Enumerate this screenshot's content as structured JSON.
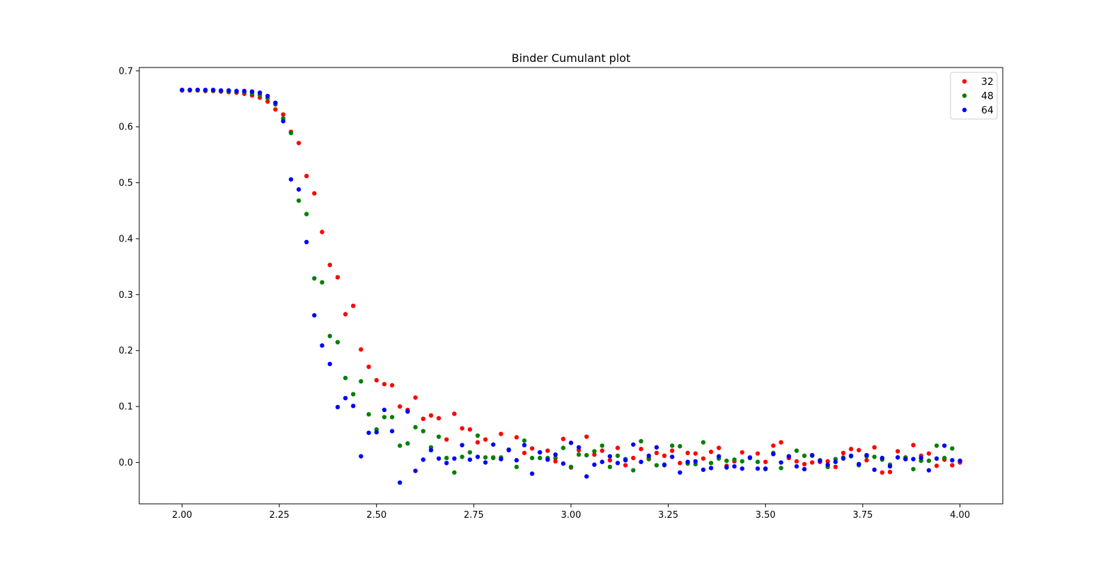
{
  "chart_data": {
    "type": "scatter",
    "title": "Binder Cumulant plot",
    "xlabel": "",
    "ylabel": "",
    "xlim": [
      1.89,
      4.11
    ],
    "ylim": [
      -0.074,
      0.706
    ],
    "xticks": [
      2.0,
      2.25,
      2.5,
      2.75,
      3.0,
      3.25,
      3.5,
      3.75,
      4.0
    ],
    "xtick_labels": [
      "2.00",
      "2.25",
      "2.50",
      "2.75",
      "3.00",
      "3.25",
      "3.50",
      "3.75",
      "4.00"
    ],
    "yticks": [
      0.0,
      0.1,
      0.2,
      0.3,
      0.4,
      0.5,
      0.6,
      0.7
    ],
    "ytick_labels": [
      "0.0",
      "0.1",
      "0.2",
      "0.3",
      "0.4",
      "0.5",
      "0.6",
      "0.7"
    ],
    "grid": false,
    "legend_position": "top-right",
    "x": [
      2.0,
      2.02,
      2.04,
      2.06,
      2.08,
      2.1,
      2.12,
      2.14,
      2.16,
      2.18,
      2.2,
      2.22,
      2.24,
      2.26,
      2.28,
      2.3,
      2.32,
      2.34,
      2.36,
      2.38,
      2.4,
      2.42,
      2.44,
      2.46,
      2.48,
      2.5,
      2.52,
      2.54,
      2.56,
      2.58,
      2.6,
      2.62,
      2.64,
      2.66,
      2.68,
      2.7,
      2.72,
      2.74,
      2.76,
      2.78,
      2.8,
      2.82,
      2.84,
      2.86,
      2.88,
      2.9,
      2.92,
      2.94,
      2.96,
      2.98,
      3.0,
      3.02,
      3.04,
      3.06,
      3.08,
      3.1,
      3.12,
      3.14,
      3.16,
      3.18,
      3.2,
      3.22,
      3.24,
      3.26,
      3.28,
      3.3,
      3.32,
      3.34,
      3.36,
      3.38,
      3.4,
      3.42,
      3.44,
      3.46,
      3.48,
      3.5,
      3.52,
      3.54,
      3.56,
      3.58,
      3.6,
      3.62,
      3.64,
      3.66,
      3.68,
      3.7,
      3.72,
      3.74,
      3.76,
      3.78,
      3.8,
      3.82,
      3.84,
      3.86,
      3.88,
      3.9,
      3.92,
      3.94,
      3.96,
      3.98,
      4.0
    ],
    "series": [
      {
        "name": "32",
        "color": "#ff0000",
        "values": [
          0.665,
          0.665,
          0.665,
          0.664,
          0.664,
          0.663,
          0.662,
          0.661,
          0.659,
          0.656,
          0.652,
          0.645,
          0.631,
          0.622,
          0.591,
          0.571,
          0.512,
          0.481,
          0.412,
          0.353,
          0.331,
          0.265,
          0.28,
          0.202,
          0.171,
          0.147,
          0.14,
          0.138,
          0.1,
          0.094,
          0.116,
          0.078,
          0.084,
          0.079,
          0.041,
          0.087,
          0.061,
          0.059,
          0.036,
          0.041,
          0.009,
          0.051,
          0.023,
          0.045,
          0.017,
          0.025,
          0.018,
          0.021,
          0.002,
          0.042,
          -0.009,
          0.022,
          0.046,
          0.014,
          0.021,
          0.004,
          0.026,
          -0.005,
          0.008,
          0.024,
          0.008,
          0.017,
          0.012,
          0.021,
          -0.001,
          0.017,
          0.016,
          0.007,
          0.019,
          0.026,
          -0.006,
          0.002,
          0.018,
          0.008,
          0.016,
          0.001,
          0.03,
          0.036,
          0.008,
          0.002,
          -0.003,
          0.0,
          0.001,
          0.002,
          -0.008,
          0.017,
          0.024,
          0.022,
          0.004,
          0.027,
          -0.018,
          -0.017,
          0.02,
          0.006,
          0.031,
          0.012,
          0.016,
          -0.006,
          0.005,
          -0.005,
          0.0
        ]
      },
      {
        "name": "48",
        "color": "#008000",
        "values": [
          0.666,
          0.666,
          0.666,
          0.665,
          0.665,
          0.664,
          0.663,
          0.663,
          0.662,
          0.66,
          0.657,
          0.651,
          0.64,
          0.615,
          0.589,
          0.468,
          0.444,
          0.329,
          0.322,
          0.226,
          0.215,
          0.151,
          0.122,
          0.145,
          0.086,
          0.059,
          0.081,
          0.081,
          0.03,
          0.034,
          0.063,
          0.056,
          0.027,
          0.046,
          0.008,
          -0.018,
          0.01,
          0.018,
          0.048,
          0.009,
          0.008,
          0.009,
          0.023,
          -0.008,
          0.039,
          0.008,
          0.008,
          0.008,
          0.008,
          0.026,
          -0.008,
          0.014,
          0.013,
          0.02,
          0.03,
          -0.008,
          0.012,
          0.006,
          -0.014,
          0.038,
          0.006,
          -0.005,
          -0.005,
          0.03,
          0.029,
          -0.002,
          -0.003,
          0.036,
          -0.001,
          0.007,
          0.003,
          0.005,
          0.002,
          0.008,
          0.001,
          -0.012,
          0.017,
          -0.01,
          0.011,
          0.021,
          0.012,
          0.012,
          0.004,
          -0.008,
          0.006,
          0.009,
          0.011,
          -0.005,
          0.011,
          0.01,
          0.005,
          -0.004,
          0.009,
          0.009,
          -0.012,
          0.003,
          0.003,
          0.03,
          0.008,
          0.025,
          0.003
        ]
      },
      {
        "name": "64",
        "color": "#0000ff",
        "values": [
          0.666,
          0.666,
          0.666,
          0.666,
          0.666,
          0.665,
          0.665,
          0.664,
          0.664,
          0.663,
          0.661,
          0.655,
          0.643,
          0.61,
          0.506,
          0.488,
          0.394,
          0.263,
          0.209,
          0.176,
          0.099,
          0.115,
          0.101,
          0.011,
          0.053,
          0.054,
          0.094,
          0.056,
          -0.036,
          0.091,
          -0.015,
          0.005,
          0.022,
          0.007,
          -0.001,
          0.007,
          0.031,
          0.005,
          0.01,
          0.0,
          0.032,
          0.006,
          0.022,
          0.004,
          0.031,
          -0.02,
          0.018,
          0.005,
          0.014,
          -0.002,
          0.035,
          0.027,
          -0.025,
          -0.004,
          0.001,
          0.011,
          -0.001,
          0.004,
          0.032,
          0.001,
          0.012,
          0.027,
          -0.004,
          0.01,
          -0.018,
          0.001,
          0.002,
          -0.013,
          -0.01,
          0.011,
          -0.009,
          -0.007,
          -0.011,
          0.009,
          -0.011,
          -0.011,
          0.015,
          0.0,
          0.011,
          -0.007,
          -0.012,
          0.013,
          0.003,
          -0.004,
          0.001,
          0.007,
          0.012,
          -0.003,
          0.013,
          -0.013,
          0.008,
          -0.007,
          0.009,
          0.006,
          0.006,
          0.008,
          -0.014,
          0.007,
          0.03,
          0.004,
          0.003
        ]
      }
    ]
  }
}
